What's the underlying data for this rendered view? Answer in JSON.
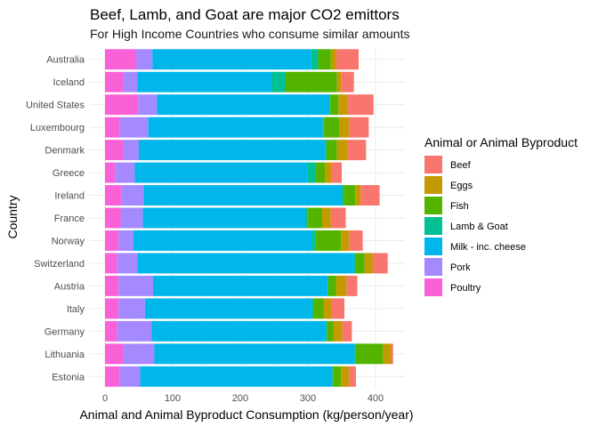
{
  "chart_data": {
    "type": "bar",
    "orientation": "horizontal",
    "stacked": true,
    "title": "Beef, Lamb, and Goat are major CO2 emittors",
    "subtitle": "For High Income Countries who consume similar amounts",
    "xlabel": "Animal and Animal Byproduct Consumption (kg/person/year)",
    "ylabel": "Country",
    "xlim": [
      0,
      450
    ],
    "xticks": [
      0,
      100,
      200,
      300,
      400
    ],
    "grid": true,
    "legend_title": "Animal or Animal Byproduct",
    "legend_position": "right",
    "categories": [
      "Australia",
      "Iceland",
      "United States",
      "Luxembourg",
      "Denmark",
      "Greece",
      "Ireland",
      "France",
      "Norway",
      "Switzerland",
      "Austria",
      "Italy",
      "Germany",
      "Lithuania",
      "Estonia"
    ],
    "stack_order": [
      "Poultry",
      "Pork",
      "Milk - inc. cheese",
      "Lamb & Goat",
      "Fish",
      "Eggs",
      "Beef"
    ],
    "legend_order": [
      "Beef",
      "Eggs",
      "Fish",
      "Lamb & Goat",
      "Milk - inc. cheese",
      "Pork",
      "Poultry"
    ],
    "series": [
      {
        "name": "Beef",
        "color": "#F8766D",
        "values": [
          33,
          19,
          38,
          29,
          28,
          15,
          28,
          22,
          20,
          22,
          16,
          19,
          14,
          3,
          10
        ]
      },
      {
        "name": "Eggs",
        "color": "#C49A00",
        "values": [
          8,
          6,
          14,
          15,
          15,
          10,
          8,
          13,
          12,
          12,
          15,
          12,
          13,
          12,
          12
        ]
      },
      {
        "name": "Fish",
        "color": "#53B400",
        "values": [
          19,
          76,
          12,
          22,
          16,
          13,
          17,
          22,
          38,
          13,
          12,
          15,
          10,
          41,
          12
        ]
      },
      {
        "name": "Lamb & Goat",
        "color": "#00C094",
        "values": [
          10,
          21,
          1,
          2,
          1,
          13,
          3,
          3,
          5,
          3,
          1,
          2,
          1,
          1,
          1
        ]
      },
      {
        "name": "Milk - inc. cheese",
        "color": "#00B6EB",
        "values": [
          235,
          198,
          255,
          258,
          276,
          255,
          293,
          240,
          264,
          320,
          258,
          247,
          258,
          296,
          284
        ]
      },
      {
        "name": "Pork",
        "color": "#A58AFF",
        "values": [
          24,
          21,
          28,
          42,
          23,
          29,
          33,
          33,
          22,
          30,
          51,
          39,
          51,
          46,
          30
        ]
      },
      {
        "name": "Poultry",
        "color": "#FB61D7",
        "values": [
          46,
          27,
          49,
          22,
          27,
          15,
          24,
          23,
          20,
          18,
          20,
          20,
          18,
          27,
          22
        ]
      }
    ]
  }
}
